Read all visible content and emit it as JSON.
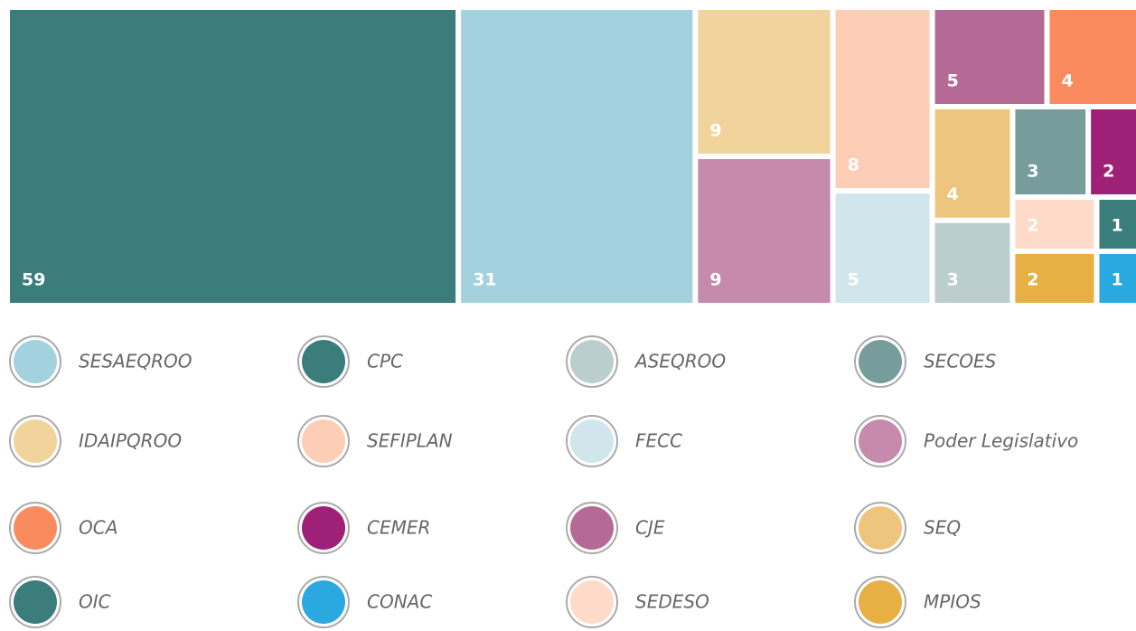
{
  "chart_data": {
    "type": "treemap",
    "categories": [
      "SESAEQROO",
      "CPC",
      "ASEQROO",
      "SECOES",
      "IDAIPQROO",
      "SEFIPLAN",
      "FECC",
      "Poder Legislativo",
      "OCA",
      "CEMER",
      "CJE",
      "SEQ",
      "OIC",
      "CONAC",
      "SEDESO",
      "MPIOS"
    ],
    "values": [
      31,
      59,
      3,
      3,
      9,
      8,
      5,
      9,
      4,
      2,
      5,
      4,
      1,
      1,
      2,
      2
    ],
    "colors": [
      "#a3d2de",
      "#3a7d7b",
      "#bccdce",
      "#779c9c",
      "#f1d49c",
      "#fdcdb6",
      "#d0e6ec",
      "#c68aad",
      "#f98b5e",
      "#9e2177",
      "#b56995",
      "#edc57d",
      "#3a7d7b",
      "#2aa8e0",
      "#fedbc8",
      "#e6b045"
    ]
  }
}
